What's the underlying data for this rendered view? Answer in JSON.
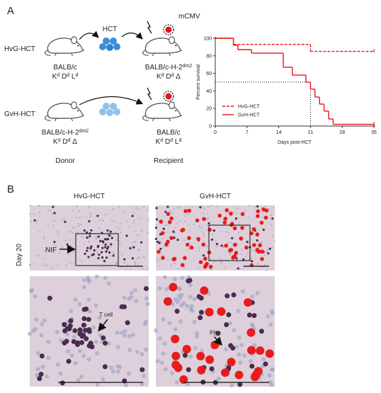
{
  "panel_a": {
    "label": "A",
    "rows": [
      {
        "name": "HvG-HCT",
        "donor": {
          "strain": {
            "text": "BALB/c"
          },
          "haplotype": [
            {
              "text": "K",
              "sup": "d"
            },
            {
              "text": " D",
              "sup": "d"
            },
            {
              "text": " L",
              "sup": "d"
            }
          ]
        },
        "recipient": {
          "strain": {
            "text": "BALB/c-H-2",
            "sup": "dm2"
          },
          "haplotype": [
            {
              "text": "K",
              "sup": "d"
            },
            {
              "text": " D",
              "sup": "d"
            },
            {
              "text": " Δ"
            }
          ]
        }
      },
      {
        "name": "GvH-HCT",
        "donor": {
          "strain": {
            "text": "BALB/c-H-2",
            "sup": "dm2"
          },
          "haplotype": [
            {
              "text": "K",
              "sup": "d"
            },
            {
              "text": " D",
              "sup": "d"
            },
            {
              "text": " Δ"
            }
          ]
        },
        "recipient": {
          "strain": {
            "text": "BALB/c"
          },
          "haplotype": [
            {
              "text": "K",
              "sup": "d"
            },
            {
              "text": " D",
              "sup": "d"
            },
            {
              "text": " L",
              "sup": "d"
            }
          ]
        }
      }
    ],
    "transfer": "HCT",
    "virus": "mCMV",
    "donor_label": "Donor",
    "recipient_label": "Recipient"
  },
  "chart_data": {
    "type": "step",
    "xlabel": "Days post-HCT",
    "ylabel": "Percent survival",
    "xlim": [
      0,
      35
    ],
    "ylim": [
      0,
      100
    ],
    "xticks": [
      0,
      7,
      14,
      21,
      28,
      35
    ],
    "yticks": [
      0,
      20,
      40,
      60,
      80,
      100
    ],
    "reference": {
      "x": 21,
      "y": 50
    },
    "legend": "lower left",
    "series": [
      {
        "name": "HvG-HCT",
        "color": "#e8141c",
        "dash": true,
        "x": [
          0,
          4,
          21,
          35
        ],
        "values": [
          100,
          93,
          85,
          85
        ]
      },
      {
        "name": "GvH-HCT",
        "color": "#e8141c",
        "dash": false,
        "x": [
          0,
          4,
          5,
          8,
          15,
          17,
          20,
          21,
          22,
          23,
          24,
          25,
          26,
          35
        ],
        "values": [
          100,
          92,
          87,
          83,
          67,
          58,
          50,
          42,
          33,
          25,
          17,
          8,
          2,
          2
        ]
      }
    ]
  },
  "panel_b": {
    "label": "B",
    "columns": [
      "HvG-HCT",
      "GvH-HCT"
    ],
    "row_label": "Day 20",
    "annotations": {
      "nif": "NIF",
      "tcell": "T cell",
      "ihc": "iHc"
    }
  }
}
